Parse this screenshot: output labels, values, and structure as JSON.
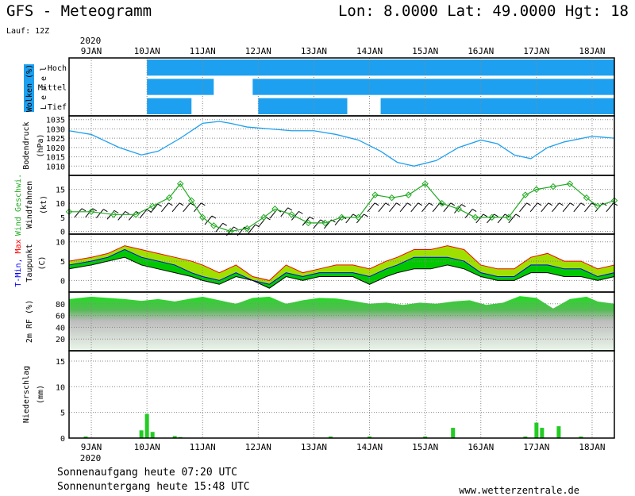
{
  "header": {
    "title": "GFS - Meteogramm",
    "location": "Lon: 8.0000 Lat: 49.0000 Hgt: 18",
    "run": "Lauf: 12Z"
  },
  "footer": {
    "sunrise": "Sonnenaufgang heute 07:20 UTC",
    "sunset": "Sonnenuntergang heute 15:48 UTC",
    "site": "www.wetterzentrale.de"
  },
  "colors": {
    "cloud": "#1ea0f0",
    "pressure": "#1ea0f0",
    "wind": "#22aa22",
    "temp_fill": "#00c800",
    "temp_max_fill": "#a0e000",
    "temp_max_line": "#ff0000",
    "temp_min_line": "#0000ff",
    "dewpoint_line": "#000000",
    "precip": "#22cc22"
  },
  "chart_data": {
    "time_axis": {
      "year_label": "2020",
      "day_labels": [
        "9JAN",
        "10JAN",
        "11JAN",
        "12JAN",
        "13JAN",
        "14JAN",
        "15JAN",
        "16JAN",
        "17JAN",
        "18JAN"
      ],
      "start": "2020-01-09",
      "day_span": [
        -0.4,
        9.4
      ]
    },
    "panels": [
      {
        "id": "clouds",
        "type": "heatmap",
        "ylabel": "Wolken (%)",
        "ylabel2": "L e v e l",
        "levels": [
          "Hoch",
          "Mittel",
          "Tief"
        ],
        "rows": {
          "Hoch": [
            [
              1.0,
              9.4
            ]
          ],
          "Mittel": [
            [
              1.0,
              2.2
            ],
            [
              2.9,
              9.4
            ]
          ],
          "Tief": [
            [
              1.0,
              1.8
            ],
            [
              3.0,
              4.6
            ],
            [
              5.2,
              9.4
            ]
          ]
        }
      },
      {
        "id": "pressure",
        "type": "line",
        "ylabel": "Bodendruck",
        "ylabel2": "(hPa)",
        "yticks": [
          1010,
          1015,
          1020,
          1025,
          1030,
          1035
        ],
        "ylim": [
          1005,
          1037
        ],
        "x": [
          -0.4,
          0,
          0.5,
          0.9,
          1.2,
          1.6,
          2.0,
          2.3,
          2.5,
          2.8,
          3.2,
          3.6,
          4.0,
          4.4,
          4.8,
          5.2,
          5.5,
          5.8,
          6.2,
          6.6,
          7.0,
          7.3,
          7.6,
          7.9,
          8.2,
          8.5,
          9.0,
          9.4
        ],
        "series": [
          {
            "values": [
              1029,
              1027,
              1020,
              1016,
              1018,
              1025,
              1033,
              1034,
              1033,
              1031,
              1030,
              1029,
              1029,
              1027,
              1024,
              1018,
              1012,
              1010,
              1013,
              1020,
              1024,
              1022,
              1016,
              1014,
              1020,
              1023,
              1026,
              1025
            ]
          }
        ]
      },
      {
        "id": "wind",
        "type": "line",
        "ylabel": "Wind Geschwi.",
        "ylabel2": "Windfahnen",
        "ylabel3": "(kt)",
        "yticks": [
          0,
          5,
          10,
          15
        ],
        "ylim": [
          -1,
          20
        ],
        "x": [
          -0.4,
          0,
          0.4,
          0.8,
          1.1,
          1.4,
          1.6,
          1.8,
          2.0,
          2.2,
          2.5,
          2.8,
          3.1,
          3.3,
          3.6,
          3.9,
          4.2,
          4.5,
          4.8,
          5.1,
          5.4,
          5.7,
          6.0,
          6.3,
          6.6,
          6.9,
          7.2,
          7.5,
          7.8,
          8.0,
          8.3,
          8.6,
          8.9,
          9.1,
          9.4
        ],
        "series": [
          {
            "values": [
              7,
              7,
              6,
              6,
              9,
              12,
              17,
              11,
              5,
              2,
              0,
              1,
              5,
              8,
              6,
              3,
              3,
              5,
              5,
              13,
              12,
              13,
              17,
              10,
              8,
              5,
              5,
              5,
              13,
              15,
              16,
              17,
              12,
              9,
              11
            ]
          }
        ]
      },
      {
        "id": "temperature",
        "type": "area",
        "ylabel": "T-Min, Max",
        "ylabel2": "Taupunkt",
        "ylabel3": "(C)",
        "yticks": [
          0,
          5,
          10
        ],
        "ylim": [
          -3,
          12
        ],
        "x": [
          -0.4,
          0,
          0.3,
          0.6,
          0.9,
          1.2,
          1.5,
          1.8,
          2.0,
          2.3,
          2.6,
          2.9,
          3.2,
          3.5,
          3.8,
          4.1,
          4.4,
          4.7,
          5.0,
          5.3,
          5.5,
          5.8,
          6.1,
          6.4,
          6.7,
          7.0,
          7.3,
          7.6,
          7.9,
          8.2,
          8.5,
          8.8,
          9.1,
          9.4
        ],
        "series": [
          {
            "name": "T-Max",
            "values": [
              5,
              6,
              7,
              9,
              8,
              7,
              6,
              5,
              4,
              2,
              4,
              1,
              0,
              4,
              2,
              3,
              4,
              4,
              3,
              5,
              6,
              8,
              8,
              9,
              8,
              4,
              3,
              3,
              6,
              7,
              5,
              5,
              3,
              4
            ]
          },
          {
            "name": "T-Min",
            "values": [
              4,
              5,
              6,
              8,
              6,
              5,
              4,
              2,
              1,
              0,
              2,
              0,
              -1,
              2,
              1,
              2,
              2,
              2,
              1,
              3,
              4,
              6,
              6,
              6,
              5,
              2,
              1,
              1,
              4,
              4,
              3,
              3,
              1,
              2
            ]
          },
          {
            "name": "Taupunkt",
            "values": [
              3,
              4,
              5,
              6,
              4,
              3,
              2,
              1,
              0,
              -1,
              1,
              0,
              -2,
              1,
              0,
              1,
              1,
              1,
              -1,
              1,
              2,
              3,
              3,
              4,
              3,
              1,
              0,
              0,
              2,
              2,
              1,
              1,
              0,
              1
            ]
          }
        ]
      },
      {
        "id": "humidity",
        "type": "area",
        "ylabel": "2m RF (%)",
        "yticks": [
          20,
          40,
          60,
          80
        ],
        "ylim": [
          0,
          100
        ],
        "x": [
          -0.4,
          0,
          0.3,
          0.6,
          0.9,
          1.2,
          1.5,
          1.8,
          2.0,
          2.3,
          2.6,
          2.9,
          3.2,
          3.5,
          3.8,
          4.1,
          4.4,
          4.7,
          5.0,
          5.3,
          5.6,
          5.9,
          6.2,
          6.5,
          6.8,
          7.1,
          7.4,
          7.7,
          8.0,
          8.3,
          8.6,
          8.9,
          9.1,
          9.4
        ],
        "series": [
          {
            "values": [
              88,
              92,
              90,
              88,
              85,
              88,
              84,
              89,
              92,
              86,
              80,
              90,
              92,
              80,
              86,
              90,
              89,
              85,
              80,
              82,
              78,
              82,
              80,
              84,
              86,
              78,
              82,
              93,
              90,
              72,
              88,
              92,
              84,
              80
            ]
          }
        ]
      },
      {
        "id": "precip",
        "type": "bar",
        "ylabel": "Niederschlag",
        "ylabel2": "(mm)",
        "yticks": [
          0,
          5,
          10,
          15
        ],
        "ylim": [
          0,
          17
        ],
        "bars": [
          {
            "x": -0.1,
            "value": 0.3
          },
          {
            "x": 0.9,
            "value": 1.5
          },
          {
            "x": 1.0,
            "value": 4.7
          },
          {
            "x": 1.1,
            "value": 1.2
          },
          {
            "x": 1.5,
            "value": 0.4
          },
          {
            "x": 1.6,
            "value": 0.2
          },
          {
            "x": 4.3,
            "value": 0.3
          },
          {
            "x": 5.0,
            "value": 0.3
          },
          {
            "x": 6.0,
            "value": 0.3
          },
          {
            "x": 6.5,
            "value": 2.0
          },
          {
            "x": 7.8,
            "value": 0.3
          },
          {
            "x": 8.0,
            "value": 3.0
          },
          {
            "x": 8.1,
            "value": 2.0
          },
          {
            "x": 8.4,
            "value": 2.3
          },
          {
            "x": 8.8,
            "value": 0.3
          }
        ]
      }
    ]
  }
}
